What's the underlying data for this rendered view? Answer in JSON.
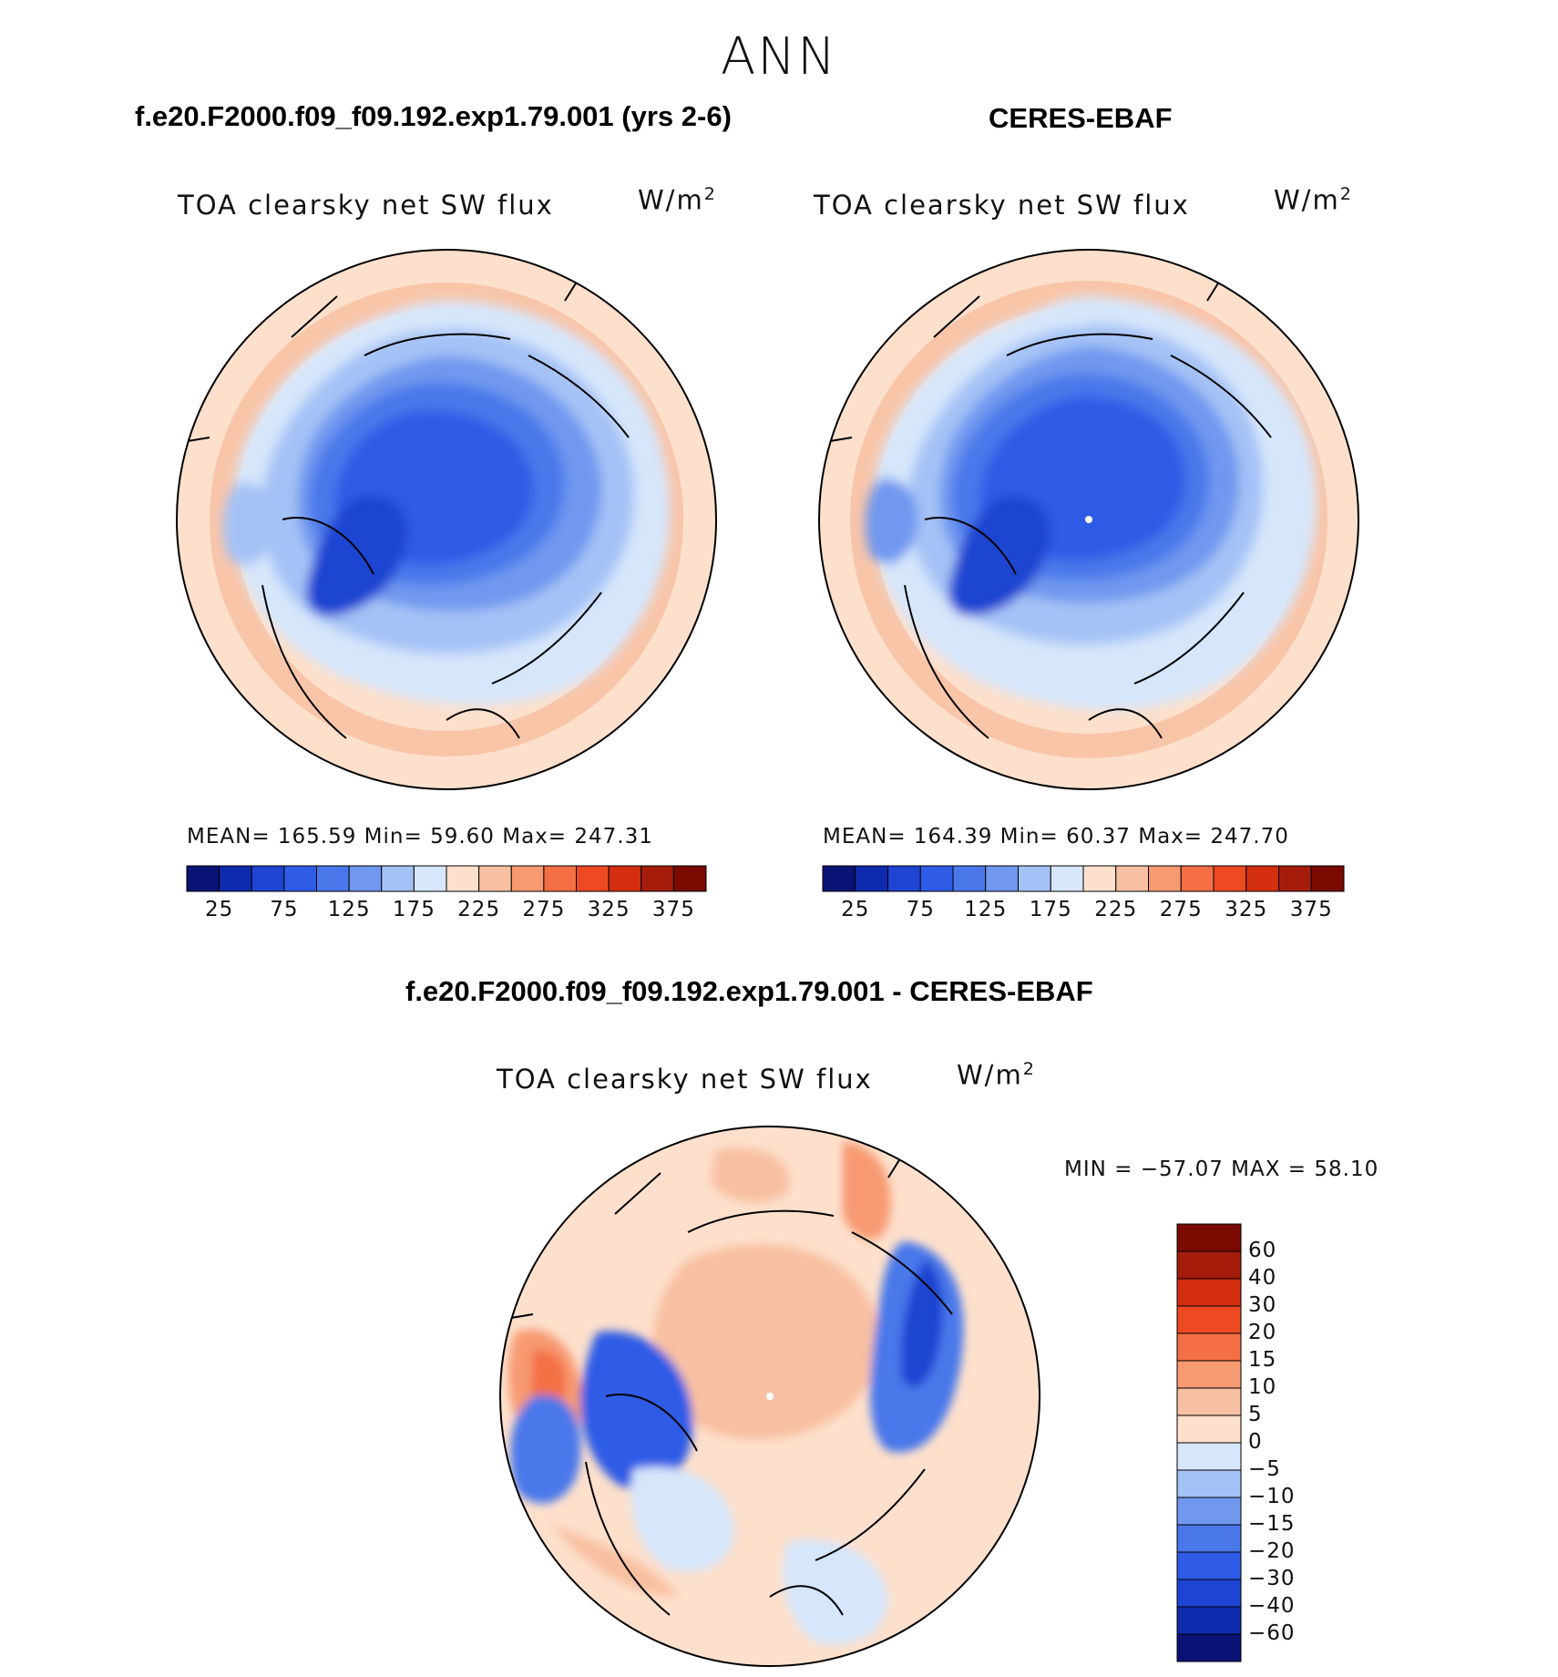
{
  "season": "ANN",
  "top_panels": [
    {
      "case_title": "f.e20.F2000.f09_f09.192.exp1.79.001 (yrs 2-6)",
      "var_title": "TOA clearsky net SW flux",
      "units_base": "W/m",
      "units_exp": "2",
      "stats": "MEAN=  165.59    Min=    59.60    Max=  247.31"
    },
    {
      "case_title": "CERES-EBAF",
      "var_title": "TOA clearsky net SW flux",
      "units_base": "W/m",
      "units_exp": "2",
      "stats": "MEAN=  164.39    Min=    60.37    Max=  247.70"
    }
  ],
  "colorbar_horizontal": {
    "colors": [
      "#0b1275",
      "#0e2aad",
      "#1d44d2",
      "#2e5ce6",
      "#4a78ea",
      "#7098ef",
      "#a5c2f6",
      "#d6e6fb",
      "#fde0cc",
      "#f8c0a2",
      "#f79a72",
      "#f46f45",
      "#ee4a22",
      "#d42e10",
      "#a51d0a",
      "#7a0a00"
    ],
    "tick_labels": [
      "25",
      "75",
      "125",
      "175",
      "225",
      "275",
      "325",
      "375"
    ]
  },
  "diff_panel": {
    "case_title": "f.e20.F2000.f09_f09.192.exp1.79.001 - CERES-EBAF",
    "var_title": "TOA clearsky net SW flux",
    "units_base": "W/m",
    "units_exp": "2",
    "minmax": "MIN  =  −57.07  MAX  =    58.10"
  },
  "colorbar_vertical": {
    "colors_top_to_bottom": [
      "#7a0a00",
      "#a51d0a",
      "#d42e10",
      "#ee4a22",
      "#f46f45",
      "#f79a72",
      "#f8c0a2",
      "#fde0cc",
      "#d6e6fb",
      "#a5c2f6",
      "#7098ef",
      "#4a78ea",
      "#2e5ce6",
      "#1d44d2",
      "#0e2aad",
      "#0b1275"
    ],
    "tick_labels": [
      "60",
      "40",
      "30",
      "20",
      "15",
      "10",
      "5",
      "0",
      "−5",
      "−10",
      "−15",
      "−20",
      "−30",
      "−40",
      "−60"
    ]
  }
}
